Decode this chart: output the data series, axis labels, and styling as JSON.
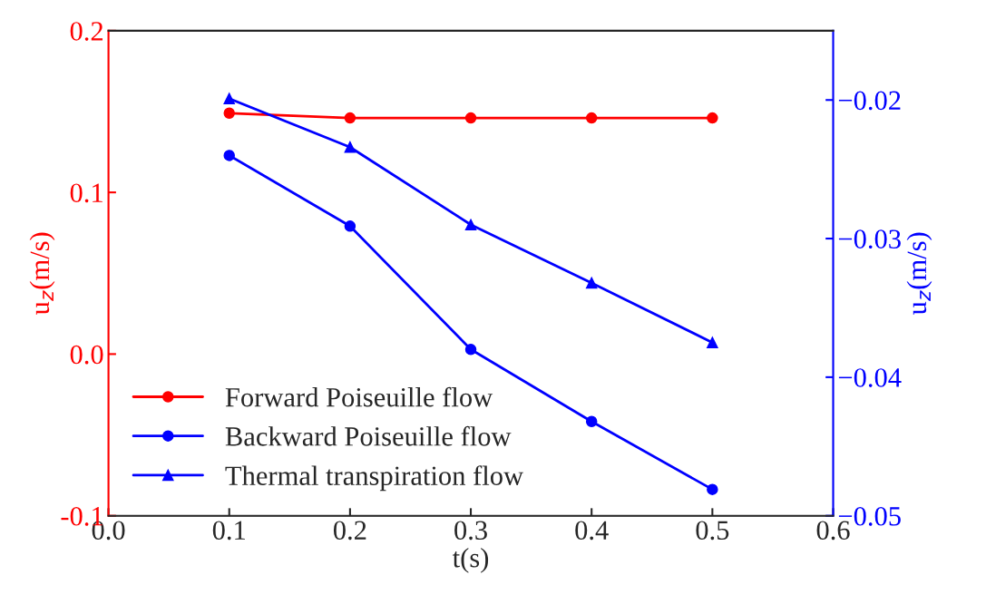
{
  "chart_data": {
    "type": "line",
    "xlabel": "t(s)",
    "ylabel": "u$_{z}$(m/s)",
    "y2label": "u$_{z}$(m/s)",
    "x": [
      0.1,
      0.2,
      0.3,
      0.4,
      0.5
    ],
    "xlim": [
      0.0,
      0.6
    ],
    "xticks": [
      {
        "value": 0.0,
        "label": "0.0"
      },
      0.1,
      0.2,
      0.3,
      0.4,
      0.5,
      0.6
    ],
    "ylim": [
      -0.1,
      0.2
    ],
    "yticks": [
      -0.1,
      {
        "value": 0.0,
        "label": "0.0"
      },
      0.1,
      0.2
    ],
    "y2lim": [
      -0.05,
      -0.015
    ],
    "y2ticks": [
      {
        "value": -0.05,
        "label": "−0.05"
      },
      {
        "value": -0.04,
        "label": "−0.04"
      },
      {
        "value": -0.03,
        "label": "−0.03"
      },
      {
        "value": -0.02,
        "label": "−0.02"
      }
    ],
    "grid": false,
    "legend": "bottom left",
    "series": [
      {
        "name": "Forward Poiseuille flow",
        "color": "#ff0000",
        "marker": "circle",
        "values": [
          0.149,
          0.146,
          0.146,
          0.146,
          0.146
        ]
      },
      {
        "name": "Backward Poiseuille flow",
        "color": "#0000ff",
        "marker": "circle",
        "axis": "y2",
        "values": [
          -0.024,
          -0.0291,
          -0.038,
          -0.0432,
          -0.0481
        ]
      },
      {
        "name": "Thermal transpiration flow",
        "color": "#0000ff",
        "marker": "triangle",
        "axis": "y2",
        "values": [
          -0.0199,
          -0.0234,
          -0.029,
          -0.0332,
          -0.0375
        ]
      }
    ]
  }
}
